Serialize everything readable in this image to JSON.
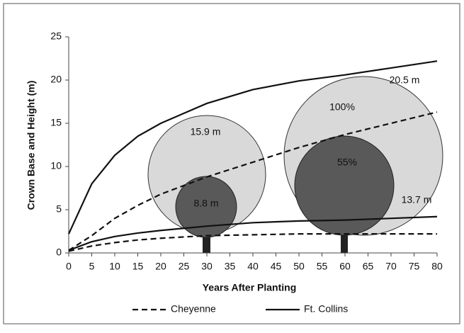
{
  "chart_data": {
    "type": "line",
    "xlabel": "Years After Planting",
    "ylabel": "Crown Base and Height (m)",
    "x": [
      0,
      5,
      10,
      15,
      20,
      30,
      40,
      50,
      60,
      70,
      80
    ],
    "series": [
      {
        "name": "Cheyenne",
        "color": "#111111",
        "dashed": true,
        "height": [
          0.3,
          2,
          4,
          5.5,
          6.8,
          8.8,
          10.5,
          12.2,
          13.7,
          15,
          16.3
        ],
        "crown_base": [
          0.2,
          0.8,
          1.2,
          1.5,
          1.7,
          2.0,
          2.1,
          2.2,
          2.2,
          2.2,
          2.2
        ]
      },
      {
        "name": "Ft. Collins",
        "color": "#111111",
        "dashed": false,
        "height": [
          2.2,
          8,
          11.3,
          13.5,
          15,
          17.3,
          18.9,
          19.9,
          20.6,
          21.4,
          22.2
        ],
        "crown_base": [
          0.3,
          1.3,
          1.9,
          2.3,
          2.6,
          3.1,
          3.5,
          3.7,
          3.8,
          4.0,
          4.2
        ]
      }
    ],
    "annotations": [
      "15.9 m",
      "8.8 m",
      "20.5 m",
      "13.7 m",
      "100%",
      "55%"
    ],
    "xlim": [
      0,
      80
    ],
    "xticks": [
      0,
      5,
      10,
      15,
      20,
      25,
      30,
      35,
      40,
      45,
      50,
      55,
      60,
      65,
      70,
      75,
      80
    ],
    "ylim": [
      0,
      25
    ],
    "yticks": [
      0,
      5,
      10,
      15,
      20,
      25
    ],
    "grid": false,
    "legend": "bottom"
  }
}
